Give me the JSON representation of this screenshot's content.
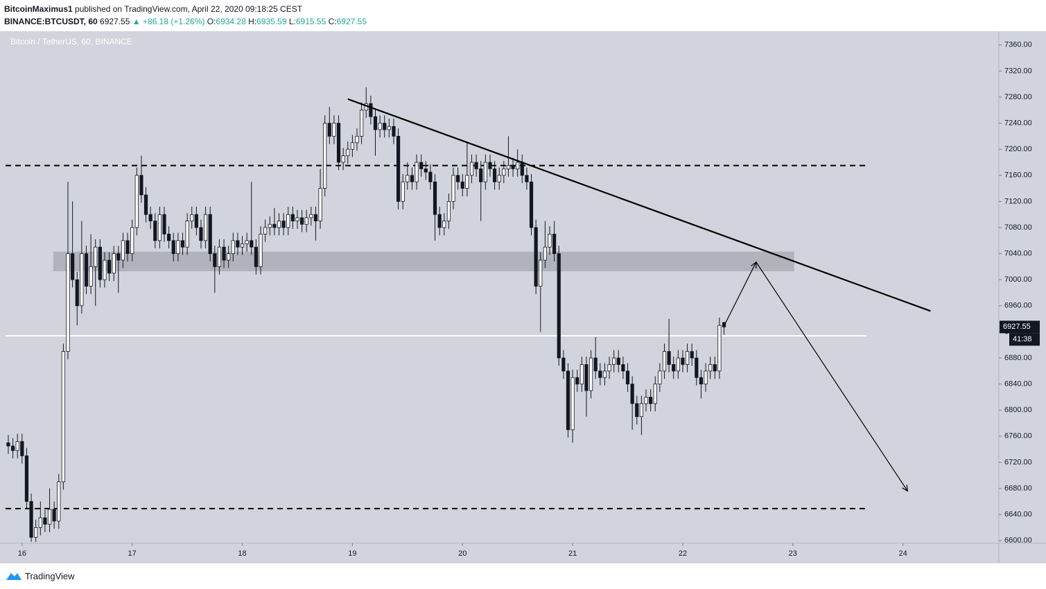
{
  "header": {
    "author": "BitcoinMaximus1",
    "published": "published on TradingView.com, April 22, 2020 09:18:25 CEST",
    "symbol": "BINANCE:BTCUSDT, 60",
    "change": "▲ +86.18 (+1.26%)",
    "ohlc_labels": [
      "O:",
      "H:",
      "L:",
      "C:"
    ]
  },
  "chart_data": {
    "type": "candlestick",
    "title": "Bitcoin / TetherUS, 60, BINANCE",
    "open": [
      6750,
      6745,
      6738,
      6752,
      6730,
      6660,
      6605,
      6620,
      6635,
      6625,
      6648,
      6630,
      6690,
      6890,
      7040,
      7000,
      6960,
      7040,
      6990,
      7020,
      7050,
      7000,
      7030,
      7010,
      7040,
      7030,
      7060,
      7040,
      7080,
      7160,
      7130,
      7100,
      7090,
      7060,
      7100,
      7070,
      7060,
      7040,
      7060,
      7050,
      7090,
      7100,
      7080,
      7060,
      7100,
      7040,
      7020,
      7050,
      7030,
      7040,
      7060,
      7050,
      7055,
      7060,
      7050,
      7020,
      7070,
      7080,
      7085,
      7080,
      7090,
      7080,
      7100,
      7090,
      7095,
      7085,
      7095,
      7100,
      7090,
      7140,
      7240,
      7220,
      7240,
      7180,
      7190,
      7200,
      7210,
      7220,
      7260,
      7270,
      7250,
      7230,
      7240,
      7230,
      7235,
      7220,
      7120,
      7150,
      7160,
      7150,
      7180,
      7170,
      7165,
      7150,
      7100,
      7080,
      7090,
      7120,
      7160,
      7150,
      7140,
      7160,
      7180,
      7170,
      7150,
      7180,
      7170,
      7150,
      7160,
      7170,
      7175,
      7170,
      7180,
      7160,
      7150,
      7080,
      6990,
      7030,
      7050,
      7070,
      7040,
      6880,
      6860,
      6770,
      6850,
      6840,
      6870,
      6830,
      6880,
      6860,
      6850,
      6860,
      6870,
      6880,
      6870,
      6860,
      6840,
      6810,
      6790,
      6810,
      6820,
      6810,
      6840,
      6860,
      6890,
      6870,
      6860,
      6880,
      6870,
      6890,
      6880,
      6850,
      6840,
      6860,
      6870,
      6860,
      6934.28
    ],
    "high": [
      6762,
      6757,
      6764,
      6764,
      6742,
      6672,
      6632,
      6660,
      6647,
      6680,
      6660,
      6702,
      6902,
      7150,
      7120,
      7012,
      7090,
      7052,
      7070,
      7062,
      7062,
      7042,
      7042,
      7052,
      7052,
      7072,
      7072,
      7092,
      7172,
      7190,
      7142,
      7112,
      7102,
      7112,
      7112,
      7082,
      7072,
      7072,
      7072,
      7102,
      7112,
      7112,
      7092,
      7112,
      7112,
      7052,
      7062,
      7062,
      7052,
      7072,
      7072,
      7067,
      7072,
      7150,
      7062,
      7082,
      7092,
      7097,
      7110,
      7102,
      7102,
      7112,
      7112,
      7107,
      7107,
      7107,
      7112,
      7112,
      7170,
      7252,
      7265,
      7252,
      7252,
      7202,
      7212,
      7222,
      7232,
      7272,
      7295,
      7282,
      7262,
      7252,
      7252,
      7247,
      7247,
      7232,
      7162,
      7180,
      7172,
      7192,
      7192,
      7182,
      7177,
      7162,
      7112,
      7102,
      7132,
      7172,
      7172,
      7162,
      7210,
      7192,
      7192,
      7182,
      7192,
      7192,
      7182,
      7172,
      7182,
      7220,
      7187,
      7200,
      7192,
      7172,
      7162,
      7092,
      7042,
      7090,
      7082,
      7090,
      7052,
      6892,
      6872,
      6862,
      6862,
      6882,
      6882,
      6892,
      6912,
      6872,
      6872,
      6882,
      6892,
      6892,
      6882,
      6872,
      6852,
      6822,
      6822,
      6832,
      6832,
      6852,
      6872,
      6902,
      6940,
      6882,
      6892,
      6892,
      6902,
      6902,
      6892,
      6862,
      6872,
      6882,
      6882,
      6942,
      6935.59
    ],
    "low": [
      6733,
      6726,
      6726,
      6718,
      6648,
      6598,
      6598,
      6608,
      6613,
      6613,
      6618,
      6618,
      6678,
      6878,
      6988,
      6930,
      6948,
      6978,
      6978,
      6960,
      6988,
      6988,
      6998,
      6998,
      6980,
      7018,
      7028,
      7028,
      7068,
      7118,
      7088,
      7078,
      7048,
      7048,
      7058,
      7048,
      7028,
      7028,
      7038,
      7038,
      7078,
      7068,
      7048,
      7048,
      7028,
      6980,
      7008,
      7018,
      7018,
      7028,
      7038,
      7038,
      7043,
      7038,
      7008,
      7008,
      7058,
      7068,
      7068,
      7068,
      7068,
      7068,
      7078,
      7078,
      7073,
      7073,
      7083,
      7060,
      7078,
      7128,
      7208,
      7208,
      7168,
      7168,
      7178,
      7188,
      7198,
      7208,
      7248,
      7238,
      7190,
      7218,
      7218,
      7218,
      7208,
      7108,
      7108,
      7138,
      7138,
      7138,
      7158,
      7153,
      7138,
      7060,
      7068,
      7068,
      7078,
      7108,
      7138,
      7128,
      7128,
      7148,
      7158,
      7090,
      7138,
      7158,
      7138,
      7138,
      7148,
      7158,
      7158,
      7158,
      7148,
      7138,
      7068,
      6978,
      6920,
      7018,
      7038,
      7028,
      6868,
      6848,
      6758,
      6750,
      6828,
      6828,
      6790,
      6818,
      6848,
      6838,
      6838,
      6848,
      6858,
      6858,
      6848,
      6828,
      6770,
      6778,
      6762,
      6798,
      6798,
      6798,
      6828,
      6848,
      6858,
      6848,
      6848,
      6858,
      6858,
      6868,
      6838,
      6818,
      6828,
      6848,
      6848,
      6848,
      6915.55
    ],
    "close": [
      6745,
      6738,
      6752,
      6730,
      6660,
      6605,
      6620,
      6635,
      6625,
      6648,
      6630,
      6690,
      6890,
      7040,
      7000,
      6960,
      7040,
      6990,
      7020,
      7050,
      7000,
      7030,
      7010,
      7040,
      7030,
      7060,
      7040,
      7080,
      7160,
      7130,
      7100,
      7090,
      7060,
      7100,
      7070,
      7060,
      7040,
      7060,
      7050,
      7090,
      7100,
      7080,
      7060,
      7100,
      7040,
      7020,
      7050,
      7030,
      7040,
      7060,
      7050,
      7055,
      7060,
      7050,
      7020,
      7070,
      7080,
      7085,
      7080,
      7090,
      7080,
      7100,
      7090,
      7095,
      7085,
      7095,
      7100,
      7090,
      7140,
      7240,
      7220,
      7240,
      7180,
      7190,
      7200,
      7210,
      7220,
      7260,
      7270,
      7250,
      7230,
      7240,
      7230,
      7235,
      7220,
      7120,
      7150,
      7160,
      7150,
      7180,
      7170,
      7165,
      7150,
      7100,
      7080,
      7090,
      7120,
      7160,
      7150,
      7140,
      7160,
      7180,
      7170,
      7150,
      7180,
      7170,
      7150,
      7160,
      7170,
      7175,
      7170,
      7180,
      7160,
      7150,
      7080,
      6990,
      7030,
      7050,
      7070,
      7040,
      6880,
      6860,
      6770,
      6850,
      6840,
      6870,
      6830,
      6880,
      6860,
      6850,
      6860,
      6870,
      6880,
      6870,
      6860,
      6840,
      6810,
      6790,
      6810,
      6820,
      6810,
      6840,
      6860,
      6890,
      6870,
      6860,
      6880,
      6870,
      6890,
      6880,
      6850,
      6840,
      6860,
      6870,
      6860,
      6930,
      6927.55
    ],
    "up_color": "#ffffff",
    "down_color": "#131722",
    "wick_color": "#131722",
    "xlim": [
      -0.6,
      215.9
    ],
    "xticks": [
      {
        "value": 3,
        "label": "16"
      },
      {
        "value": 27,
        "label": "17"
      },
      {
        "value": 51,
        "label": "18"
      },
      {
        "value": 75,
        "label": "19"
      },
      {
        "value": 99,
        "label": "20"
      },
      {
        "value": 123,
        "label": "21"
      },
      {
        "value": 147,
        "label": "22"
      },
      {
        "value": 171,
        "label": "23"
      },
      {
        "value": 195,
        "label": "24"
      }
    ],
    "ylim": [
      6596,
      7381
    ],
    "yticks": [
      {
        "value": 6600,
        "label": "6600.00"
      },
      {
        "value": 6640,
        "label": "6640.00"
      },
      {
        "value": 6680,
        "label": "6680.00"
      },
      {
        "value": 6720,
        "label": "6720.00"
      },
      {
        "value": 6760,
        "label": "6760.00"
      },
      {
        "value": 6800,
        "label": "6800.00"
      },
      {
        "value": 6840,
        "label": "6840.00"
      },
      {
        "value": 6880,
        "label": "6880.00"
      },
      {
        "value": 6920,
        "label": "6920.00"
      },
      {
        "value": 6960,
        "label": "6960.00"
      },
      {
        "value": 7000,
        "label": "7000.00"
      },
      {
        "value": 7040,
        "label": "7040.00"
      },
      {
        "value": 7080,
        "label": "7080.00"
      },
      {
        "value": 7120,
        "label": "7120.00"
      },
      {
        "value": 7160,
        "label": "7160.00"
      },
      {
        "value": 7200,
        "label": "7200.00"
      },
      {
        "value": 7240,
        "label": "7240.00"
      },
      {
        "value": 7280,
        "label": "7280.00"
      },
      {
        "value": 7320,
        "label": "7320.00"
      },
      {
        "value": 7360,
        "label": "7360.00"
      }
    ],
    "grid": false,
    "countdown": "41:38",
    "levels": [
      {
        "value": 7175,
        "x": [
          -0.6,
          187
        ],
        "style": "dashed",
        "color": "#000000"
      },
      {
        "value": 6649,
        "x": [
          -0.6,
          187
        ],
        "style": "dashed",
        "color": "#000000"
      },
      {
        "value": 6914,
        "x": [
          -0.6,
          187
        ],
        "style": "solid",
        "color": "#ffffff"
      }
    ],
    "zone": {
      "x": [
        9.8,
        171.3
      ],
      "y": [
        7013,
        7043
      ],
      "color": "#9598a1"
    },
    "trendline": {
      "x": [
        74,
        201
      ],
      "y": [
        7277,
        6952
      ],
      "color": "#000000"
    },
    "projection": {
      "x": [
        156.2,
        163,
        196
      ],
      "y": [
        6932,
        7027,
        6676
      ],
      "color": "#000000"
    }
  },
  "footer": {
    "brand": "TradingView"
  }
}
